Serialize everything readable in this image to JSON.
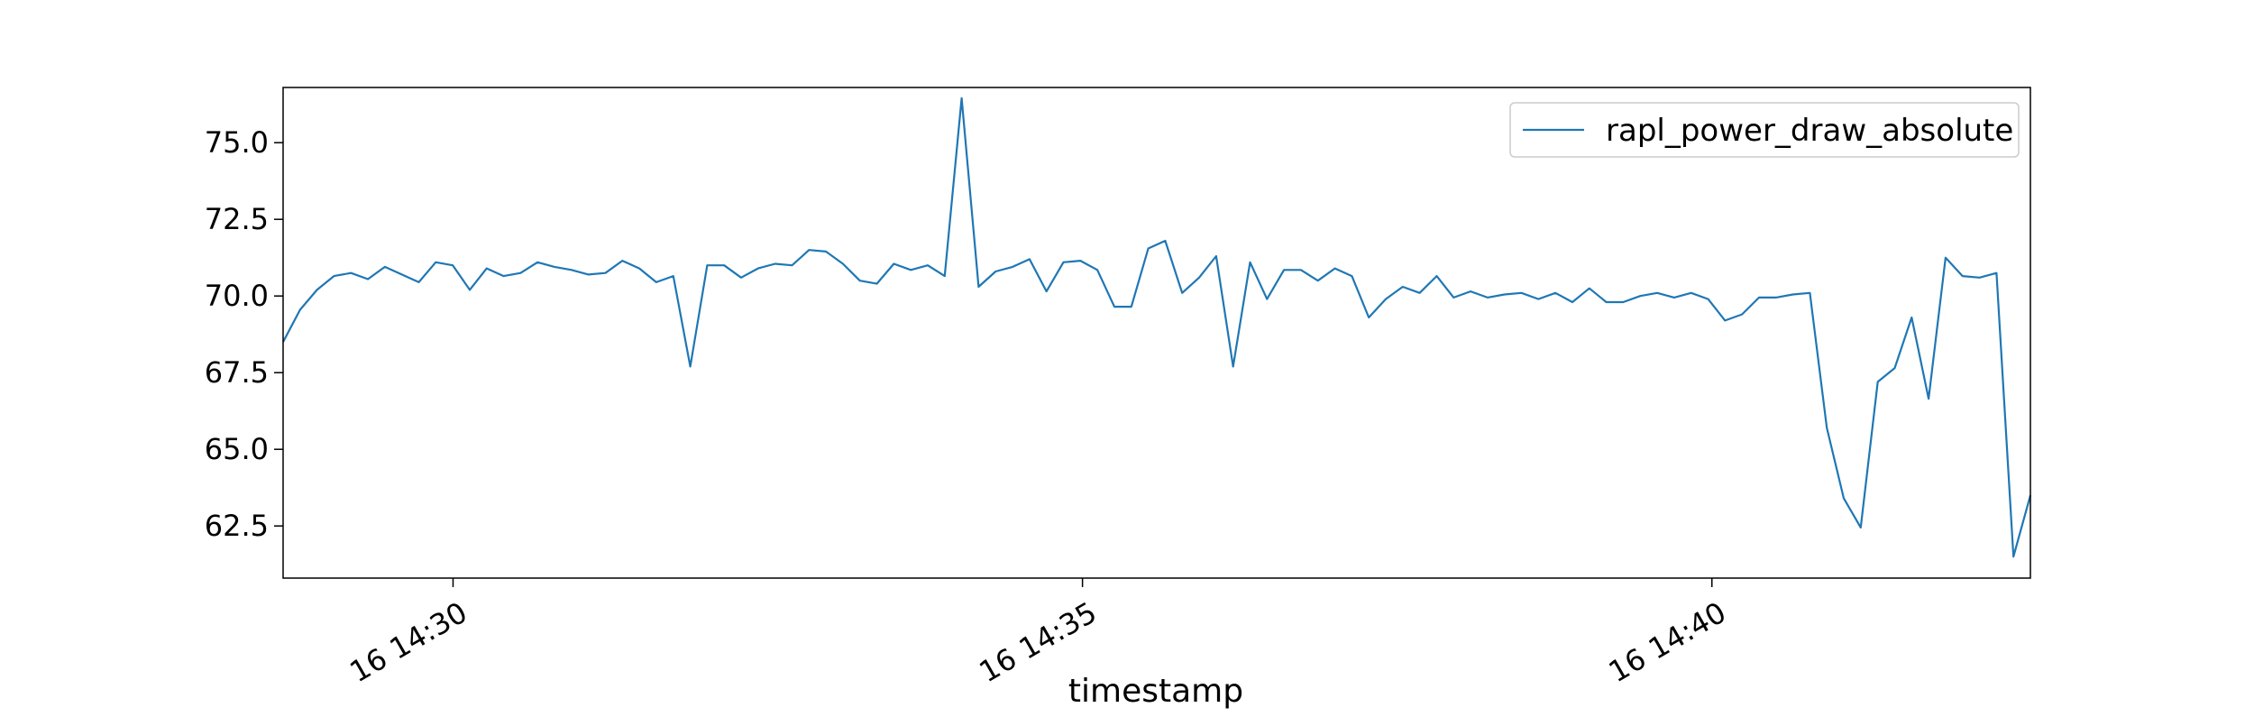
{
  "chart_data": {
    "type": "line",
    "title": "",
    "xlabel": "timestamp",
    "ylabel": "",
    "series_color": "#1f77b4",
    "legend": {
      "location": "upper right",
      "entries": [
        "rapl_power_draw_absolute"
      ]
    },
    "grid": false,
    "x_range_minutes": [
      -1.35,
      12.53
    ],
    "x_ticks": [
      {
        "minute": 0,
        "label": "16 14:30"
      },
      {
        "minute": 5,
        "label": "16 14:35"
      },
      {
        "minute": 10,
        "label": "16 14:40"
      }
    ],
    "ylim": [
      60.8,
      76.8
    ],
    "y_ticks": [
      62.5,
      65.0,
      67.5,
      70.0,
      72.5,
      75.0
    ],
    "series": [
      {
        "name": "rapl_power_draw_absolute",
        "values": [
          68.5,
          69.55,
          70.2,
          70.65,
          70.75,
          70.55,
          70.95,
          70.7,
          70.45,
          71.1,
          71.0,
          70.2,
          70.9,
          70.65,
          70.75,
          71.1,
          70.95,
          70.85,
          70.7,
          70.75,
          71.15,
          70.9,
          70.45,
          70.65,
          67.7,
          71.0,
          71.0,
          70.6,
          70.9,
          71.05,
          71.0,
          71.5,
          71.45,
          71.05,
          70.5,
          70.4,
          71.05,
          70.85,
          71.0,
          70.65,
          76.45,
          70.3,
          70.8,
          70.95,
          71.2,
          70.15,
          71.1,
          71.15,
          70.85,
          69.65,
          69.65,
          71.55,
          71.8,
          70.1,
          70.6,
          71.3,
          67.7,
          71.1,
          69.9,
          70.85,
          70.85,
          70.5,
          70.9,
          70.65,
          69.3,
          69.9,
          70.3,
          70.1,
          70.65,
          69.95,
          70.15,
          69.95,
          70.05,
          70.1,
          69.9,
          70.1,
          69.8,
          70.25,
          69.8,
          69.8,
          70.0,
          70.1,
          69.95,
          70.1,
          69.9,
          69.2,
          69.4,
          69.95,
          69.95,
          70.05,
          70.1,
          65.7,
          63.4,
          62.45,
          67.2,
          67.65,
          69.3,
          66.65,
          71.25,
          70.65,
          70.6,
          70.75,
          61.5,
          63.5
        ]
      }
    ]
  }
}
